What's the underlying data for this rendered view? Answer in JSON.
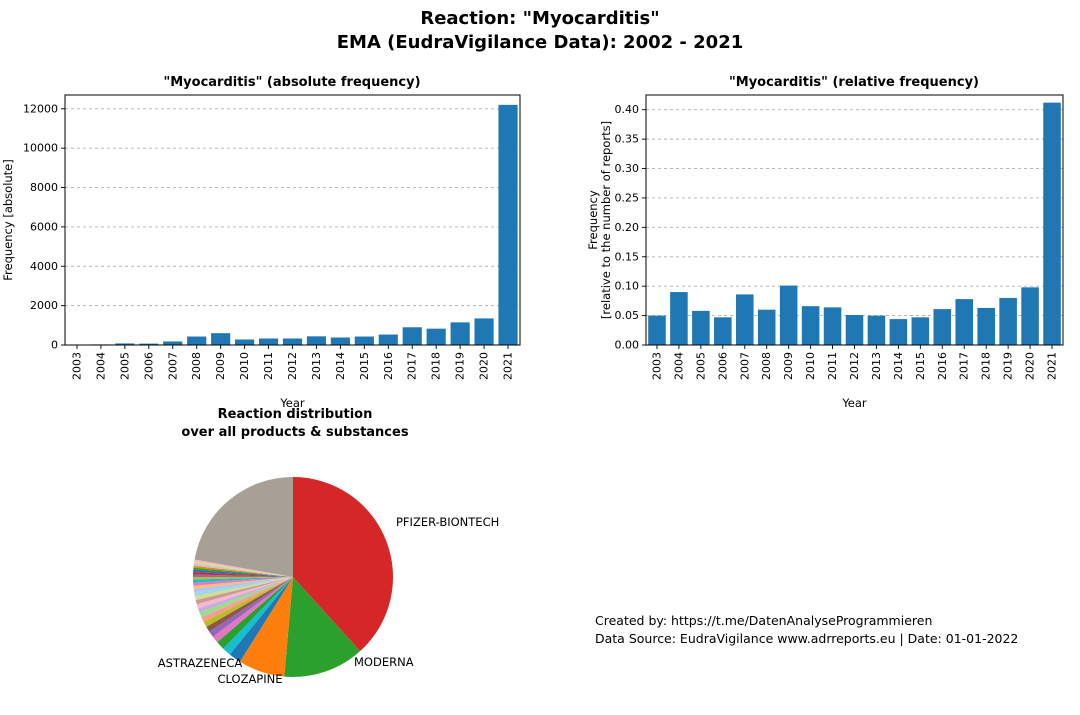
{
  "header": {
    "title_line1": "Reaction: \"Myocarditis\"",
    "title_line2": "EMA (EudraVigilance Data): 2002 - 2021"
  },
  "footer": {
    "line1": "Created by: https://t.me/DatenAnalyseProgrammieren",
    "line2": "Data Source: EudraVigilance www.adrreports.eu | Date: 01-01-2022"
  },
  "chart_data": [
    {
      "type": "bar",
      "title": "\"Myocarditis\" (absolute frequency)",
      "xlabel": "Year",
      "ylabel_lines": [
        "Frequency [absolute]"
      ],
      "categories": [
        "2003",
        "2004",
        "2005",
        "2006",
        "2007",
        "2008",
        "2009",
        "2010",
        "2011",
        "2012",
        "2013",
        "2014",
        "2015",
        "2016",
        "2017",
        "2018",
        "2019",
        "2020",
        "2021"
      ],
      "values": [
        10,
        30,
        80,
        70,
        180,
        430,
        600,
        280,
        330,
        330,
        440,
        380,
        430,
        530,
        900,
        830,
        1150,
        1350,
        12200
      ],
      "ylim": [
        0,
        12700
      ],
      "yticks": [
        0,
        2000,
        4000,
        6000,
        8000,
        10000,
        12000
      ],
      "ytick_format": "int",
      "bar_color": "#1f77b4",
      "grid": "horizontal-dashed",
      "legend": "none"
    },
    {
      "type": "bar",
      "title": "\"Myocarditis\" (relative frequency)",
      "xlabel": "Year",
      "ylabel_lines": [
        "Frequency",
        "[relative to the number of reports]"
      ],
      "categories": [
        "2003",
        "2004",
        "2005",
        "2006",
        "2007",
        "2008",
        "2009",
        "2010",
        "2011",
        "2012",
        "2013",
        "2014",
        "2015",
        "2016",
        "2017",
        "2018",
        "2019",
        "2020",
        "2021"
      ],
      "values": [
        0.05,
        0.09,
        0.058,
        0.047,
        0.086,
        0.06,
        0.101,
        0.066,
        0.064,
        0.051,
        0.05,
        0.044,
        0.047,
        0.061,
        0.078,
        0.063,
        0.08,
        0.098,
        0.412
      ],
      "ylim": [
        0,
        0.425
      ],
      "yticks": [
        0.0,
        0.05,
        0.1,
        0.15,
        0.2,
        0.25,
        0.3,
        0.35,
        0.4
      ],
      "ytick_format": "2dp",
      "bar_color": "#1f77b4",
      "grid": "horizontal-dashed",
      "legend": "none"
    },
    {
      "type": "pie",
      "title_line1": "Reaction distribution",
      "title_line2": "over all products & substances",
      "start_angle_deg": 90,
      "direction": "clockwise",
      "slices": [
        {
          "label": "PFIZER-BIONTECH",
          "value": 38.3,
          "color": "#d62728"
        },
        {
          "label": "MODERNA",
          "value": 13.1,
          "color": "#2ca02c"
        },
        {
          "label": "CLOZAPINE",
          "value": 7.5,
          "color": "#ff7f0e"
        },
        {
          "label": "ASTRAZENECA",
          "value": 2.0,
          "color": "#1f77b4"
        },
        {
          "label": "",
          "value": 1.4,
          "color": "#17becf"
        },
        {
          "label": "",
          "value": 1.4,
          "color": "#2ca02c"
        },
        {
          "label": "",
          "value": 1.1,
          "color": "#e377c2"
        },
        {
          "label": "",
          "value": 1.0,
          "color": "#9467bd"
        },
        {
          "label": "",
          "value": 0.9,
          "color": "#8c564b"
        },
        {
          "label": "",
          "value": 0.9,
          "color": "#bcbd22"
        },
        {
          "label": "",
          "value": 0.8,
          "color": "#ff9896"
        },
        {
          "label": "",
          "value": 0.8,
          "color": "#98df8a"
        },
        {
          "label": "",
          "value": 0.7,
          "color": "#c5b0d5"
        },
        {
          "label": "",
          "value": 0.7,
          "color": "#f7b6d2"
        },
        {
          "label": "",
          "value": 0.7,
          "color": "#c49c94"
        },
        {
          "label": "",
          "value": 0.6,
          "color": "#dbdb8d"
        },
        {
          "label": "",
          "value": 0.6,
          "color": "#9edae5"
        },
        {
          "label": "",
          "value": 0.6,
          "color": "#aec7e8"
        },
        {
          "label": "",
          "value": 0.5,
          "color": "#ffbb78"
        },
        {
          "label": "",
          "value": 0.5,
          "color": "#e377c2"
        },
        {
          "label": "",
          "value": 0.5,
          "color": "#17becf"
        },
        {
          "label": "",
          "value": 0.4,
          "color": "#bcbd22"
        },
        {
          "label": "",
          "value": 0.4,
          "color": "#9467bd"
        },
        {
          "label": "",
          "value": 0.4,
          "color": "#d62728"
        },
        {
          "label": "",
          "value": 0.4,
          "color": "#1f77b4"
        },
        {
          "label": "",
          "value": 0.3,
          "color": "#2ca02c"
        },
        {
          "label": "",
          "value": 0.3,
          "color": "#ff7f0e"
        },
        {
          "label": "",
          "value": 0.4,
          "color": "#c7c7c7"
        },
        {
          "label": "",
          "value": 0.3,
          "color": "#dbdb8d"
        },
        {
          "label": "",
          "value": 0.3,
          "color": "#f7b6d2"
        },
        {
          "label": "",
          "value": 22.2,
          "color": "#a89f97"
        }
      ]
    }
  ]
}
